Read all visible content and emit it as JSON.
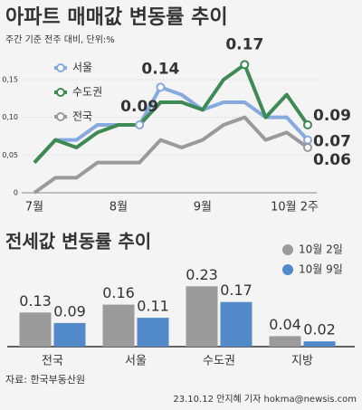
{
  "chart_data": [
    {
      "type": "line",
      "title": "아파트 매매값 변동률 추이",
      "subtitle": "주간 기준 전주 대비, 단위:%",
      "categories": [
        "7월",
        null,
        null,
        null,
        "8월",
        null,
        null,
        null,
        "9월",
        null,
        null,
        null,
        null,
        "10월 2주"
      ],
      "series": [
        {
          "name": "서울",
          "color": "#86a9df",
          "values": [
            0.04,
            0.07,
            0.07,
            0.09,
            0.09,
            0.09,
            0.14,
            0.13,
            0.11,
            0.12,
            0.12,
            0.1,
            0.1,
            0.07
          ]
        },
        {
          "name": "수도권",
          "color": "#3d8a55",
          "values": [
            0.04,
            0.07,
            0.06,
            0.08,
            0.09,
            0.09,
            0.12,
            0.12,
            0.11,
            0.15,
            0.17,
            0.1,
            0.13,
            0.09
          ]
        },
        {
          "name": "전국",
          "color": "#9a9a9a",
          "values": [
            0,
            0.02,
            0.02,
            0.04,
            0.04,
            0.04,
            0.07,
            0.06,
            0.07,
            0.09,
            0.1,
            0.07,
            0.08,
            0.06
          ]
        }
      ],
      "ylim": [
        0,
        0.18
      ],
      "yticks": [
        0,
        {
          "value": 0.05,
          "label": "0,05"
        },
        {
          "value": 0.1,
          "label": "0,10"
        },
        {
          "value": 0.15,
          "label": "0,15"
        }
      ],
      "grid": true
    },
    {
      "type": "bar",
      "title": "전세값 변동률 추이",
      "categories": [
        "전국",
        "서울",
        "수도권",
        "지방"
      ],
      "series": [
        {
          "name": "10월 2일",
          "color": "#9b9b9b",
          "values": [
            0.13,
            0.16,
            0.23,
            0.04
          ]
        },
        {
          "name": "10월 9일",
          "color": "#5289c9",
          "values": [
            0.09,
            0.11,
            0.17,
            0.02
          ]
        }
      ],
      "source": "자료: 한국부동산원",
      "credit": "23.10.12 안지혜 기자 hokma@newsis.com"
    }
  ]
}
